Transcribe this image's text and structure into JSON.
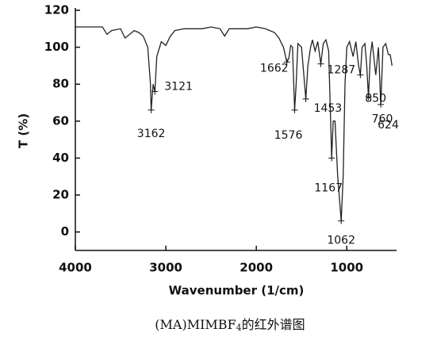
{
  "chart_data": {
    "type": "line",
    "ylabel": "T (%)",
    "xlabel": "Wavenumber (1/cm)",
    "caption": {
      "main": "(MA)MIMBF",
      "sub": "4",
      "tail": "的红外谱图"
    },
    "xlim": [
      4000,
      450
    ],
    "ylim": [
      -10,
      120
    ],
    "xticks": [
      4000,
      3000,
      2000,
      1000
    ],
    "yticks": [
      0,
      20,
      40,
      60,
      80,
      100,
      120
    ],
    "color": "#222222",
    "x": [
      4000,
      3700,
      3650,
      3600,
      3500,
      3450,
      3400,
      3350,
      3300,
      3250,
      3200,
      3170,
      3162,
      3140,
      3121,
      3100,
      3050,
      3000,
      2950,
      2900,
      2800,
      2600,
      2500,
      2400,
      2350,
      2300,
      2100,
      2000,
      1900,
      1800,
      1750,
      1700,
      1662,
      1640,
      1620,
      1600,
      1576,
      1560,
      1540,
      1500,
      1453,
      1430,
      1400,
      1380,
      1350,
      1320,
      1287,
      1260,
      1230,
      1200,
      1167,
      1150,
      1130,
      1100,
      1062,
      1040,
      1020,
      1000,
      970,
      930,
      900,
      870,
      850,
      830,
      800,
      780,
      760,
      740,
      720,
      680,
      650,
      624,
      600,
      570,
      540,
      520,
      500
    ],
    "values": [
      111,
      111,
      107,
      109,
      110,
      105,
      107,
      109,
      108,
      106,
      100,
      80,
      66,
      80,
      76,
      95,
      103,
      101,
      106,
      109,
      110,
      110,
      111,
      110,
      106,
      110,
      110,
      111,
      110,
      108,
      105,
      100,
      92,
      94,
      101,
      100,
      66,
      80,
      102,
      100,
      72,
      90,
      100,
      104,
      98,
      103,
      91,
      102,
      104,
      98,
      40,
      60,
      60,
      30,
      6,
      30,
      80,
      100,
      103,
      95,
      103,
      90,
      85,
      100,
      102,
      90,
      73,
      95,
      103,
      85,
      100,
      69,
      100,
      102,
      96,
      96,
      90
    ],
    "annotations": [
      {
        "label": "3121",
        "x": 3121,
        "y": 76
      },
      {
        "label": "3162",
        "x": 3162,
        "y": 66
      },
      {
        "label": "1662",
        "x": 1662,
        "y": 92
      },
      {
        "label": "1287",
        "x": 1287,
        "y": 91
      },
      {
        "label": "1576",
        "x": 1576,
        "y": 66
      },
      {
        "label": "1453",
        "x": 1453,
        "y": 72
      },
      {
        "label": "1167",
        "x": 1167,
        "y": 40
      },
      {
        "label": "1062",
        "x": 1062,
        "y": 6
      },
      {
        "label": "850",
        "x": 850,
        "y": 85
      },
      {
        "label": "760",
        "x": 760,
        "y": 73
      },
      {
        "label": "624",
        "x": 624,
        "y": 69
      }
    ]
  }
}
